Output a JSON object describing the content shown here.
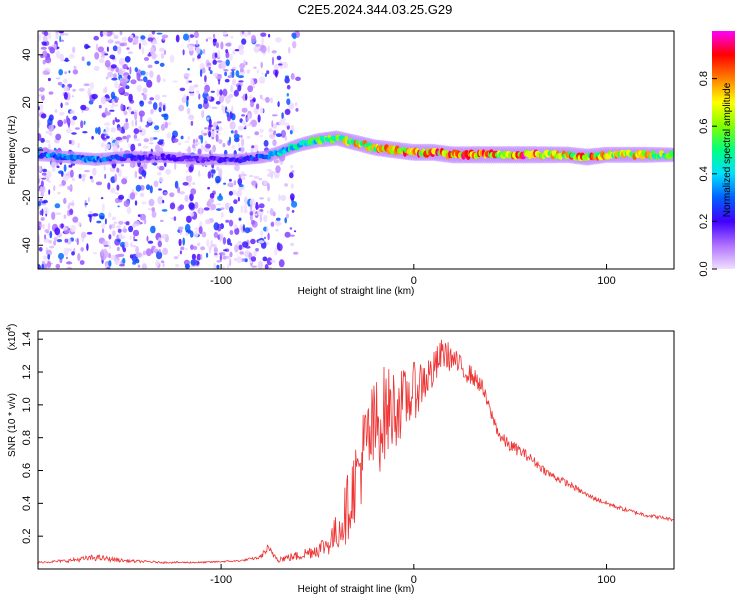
{
  "title": "C2E5.2024.344.03.25.G29",
  "chart_data": [
    {
      "type": "heatmap",
      "xlabel": "Height of straight line (km)",
      "ylabel": "Frequency (Hz)",
      "xlim": [
        -195,
        135
      ],
      "ylim": [
        -50,
        50
      ],
      "x_ticks": [
        -100,
        0,
        100
      ],
      "y_ticks": [
        -40,
        -20,
        0,
        20,
        40
      ],
      "colorbar": {
        "label": "Normalized spectral amplitude",
        "range": [
          0,
          1
        ],
        "ticks": [
          0.0,
          0.2,
          0.4,
          0.6,
          0.8
        ],
        "colors": [
          "#f0e0ff",
          "#b070ff",
          "#4000ff",
          "#0060ff",
          "#00e0ff",
          "#00ff80",
          "#80ff00",
          "#ffff00",
          "#ff8000",
          "#ff0000",
          "#ff00ff"
        ]
      },
      "ridge": {
        "x": [
          -195,
          -180,
          -165,
          -150,
          -130,
          -110,
          -90,
          -78,
          -70,
          -60,
          -50,
          -40,
          -30,
          -20,
          -10,
          0,
          10,
          20,
          40,
          60,
          80,
          90,
          100,
          120,
          135
        ],
        "freq_hz": [
          -2,
          -3,
          -4,
          -3,
          -3,
          -4,
          -4,
          -3,
          -1,
          2,
          4,
          5,
          3,
          1,
          0,
          -1,
          -1,
          -2,
          -2,
          -2,
          -2,
          -3,
          -2,
          -2,
          -2
        ],
        "intensity": [
          0.4,
          0.35,
          0.4,
          0.3,
          0.2,
          0.2,
          0.25,
          0.35,
          0.45,
          0.5,
          0.6,
          0.7,
          0.8,
          0.85,
          0.9,
          0.9,
          0.9,
          0.92,
          0.95,
          0.95,
          0.85,
          0.9,
          0.8,
          0.8,
          0.6
        ]
      },
      "noise_region_x": [
        -195,
        -60
      ]
    },
    {
      "type": "line",
      "xlabel": "Height of straight line (km)",
      "ylabel": "SNR (10 * v/v)",
      "y_scale_label": "(x10",
      "y_scale_exponent": "4",
      "xlim": [
        -195,
        135
      ],
      "ylim": [
        0,
        1.45
      ],
      "x_ticks": [
        -100,
        0,
        100
      ],
      "y_ticks": [
        0.2,
        0.4,
        0.6,
        0.8,
        1.0,
        1.2,
        1.4
      ],
      "series": [
        {
          "color": "#ee3333",
          "x": [
            -195,
            -180,
            -165,
            -150,
            -130,
            -110,
            -90,
            -80,
            -76,
            -70,
            -60,
            -50,
            -45,
            -40,
            -35,
            -30,
            -25,
            -20,
            -15,
            -10,
            -5,
            0,
            5,
            10,
            15,
            20,
            25,
            30,
            35,
            40,
            45,
            50,
            55,
            60,
            70,
            80,
            90,
            100,
            110,
            120,
            135
          ],
          "y": [
            0.04,
            0.05,
            0.07,
            0.05,
            0.04,
            0.04,
            0.05,
            0.07,
            0.12,
            0.06,
            0.08,
            0.12,
            0.15,
            0.22,
            0.35,
            0.55,
            0.75,
            0.85,
            0.95,
            0.98,
            1.02,
            1.08,
            1.15,
            1.2,
            1.32,
            1.28,
            1.22,
            1.18,
            1.12,
            0.95,
            0.8,
            0.75,
            0.72,
            0.68,
            0.58,
            0.52,
            0.45,
            0.4,
            0.36,
            0.33,
            0.3
          ],
          "amplitude": [
            0.005,
            0.01,
            0.02,
            0.01,
            0.005,
            0.005,
            0.005,
            0.01,
            0.03,
            0.02,
            0.03,
            0.05,
            0.07,
            0.12,
            0.2,
            0.25,
            0.3,
            0.32,
            0.3,
            0.25,
            0.2,
            0.18,
            0.15,
            0.12,
            0.1,
            0.08,
            0.07,
            0.06,
            0.05,
            0.04,
            0.04,
            0.04,
            0.035,
            0.03,
            0.025,
            0.02,
            0.015,
            0.015,
            0.012,
            0.012,
            0.01
          ]
        }
      ]
    }
  ]
}
